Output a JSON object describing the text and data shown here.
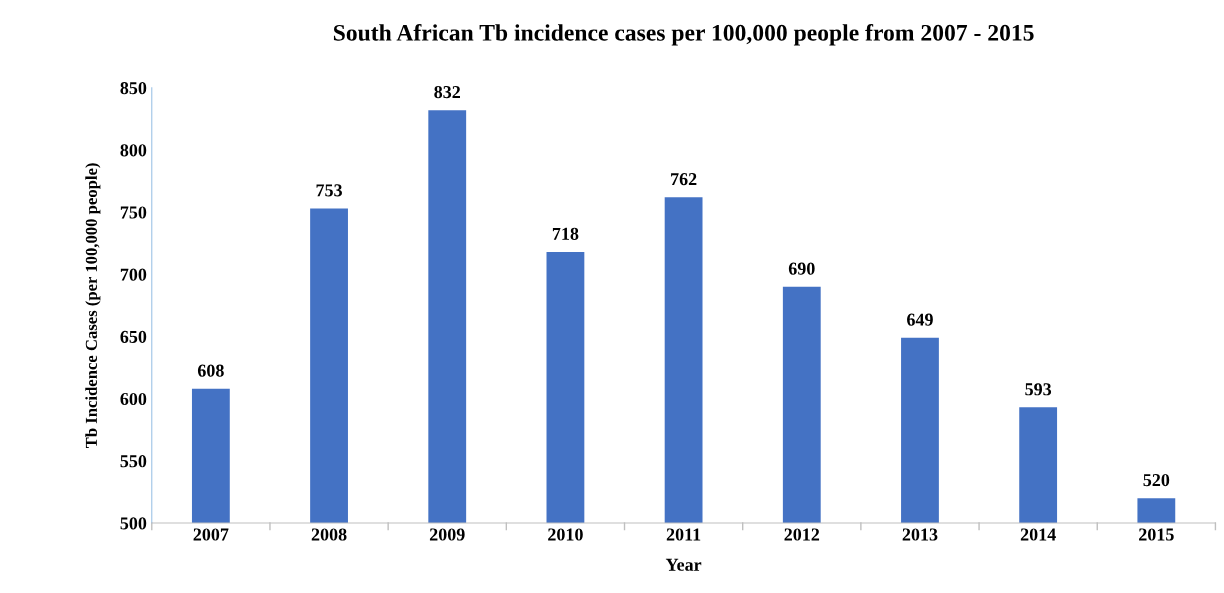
{
  "chart_data": {
    "type": "bar",
    "title": "South African Tb incidence cases per 100,000 people from 2007 - 2015",
    "xlabel": "Year",
    "ylabel": "Tb Incidence Cases (per 100,000 people)",
    "categories": [
      "2007",
      "2008",
      "2009",
      "2010",
      "2011",
      "2012",
      "2013",
      "2014",
      "2015"
    ],
    "values": [
      608,
      753,
      832,
      718,
      762,
      690,
      649,
      593,
      520
    ],
    "color": "#4472c4",
    "ylim": [
      500,
      850
    ],
    "yticks": [
      500,
      550,
      600,
      650,
      700,
      750,
      800,
      850
    ],
    "data_labels": true,
    "grid": false,
    "legend": false
  }
}
